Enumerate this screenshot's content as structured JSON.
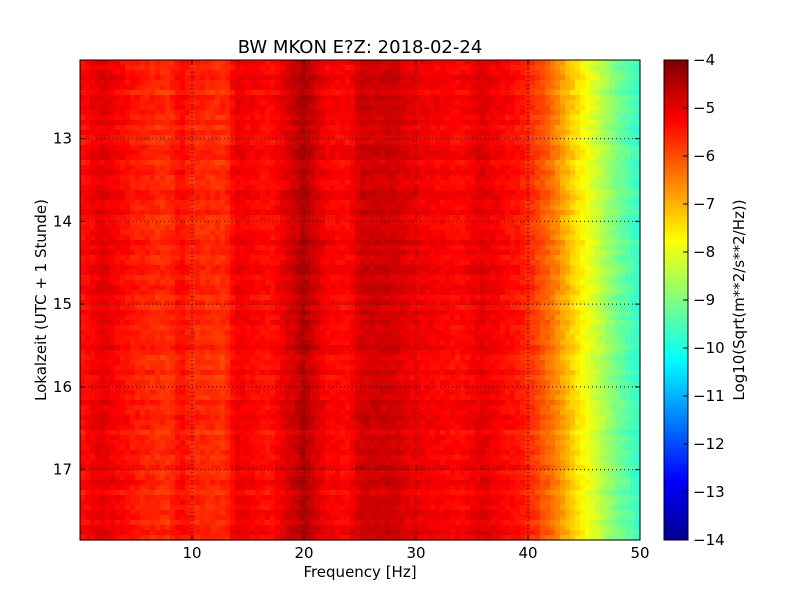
{
  "chart_data": {
    "type": "heatmap",
    "title": "BW MKON E?Z: 2018-02-24",
    "xlabel": "Frequency [Hz]",
    "ylabel": "Lokalzeit (UTC + 1 Stunde)",
    "colorbar_label": "Log10(Sqrt(m**2/s**2/Hz))",
    "colormap": "jet",
    "xlim": [
      0,
      50
    ],
    "ylim": [
      12.05,
      17.85
    ],
    "y_inverted": true,
    "clim": [
      -14,
      -4
    ],
    "grid": true,
    "x_ticks": [
      10,
      20,
      30,
      40,
      50
    ],
    "x_tick_labels": [
      "10",
      "20",
      "30",
      "40",
      "50"
    ],
    "y_ticks": [
      13,
      14,
      15,
      16,
      17
    ],
    "y_tick_labels": [
      "13",
      "14",
      "15",
      "16",
      "17"
    ],
    "colorbar_ticks": [
      -4,
      -5,
      -6,
      -7,
      -8,
      -9,
      -10,
      -11,
      -12,
      -13,
      -14
    ],
    "colorbar_tick_labels": [
      "−4",
      "−5",
      "−6",
      "−7",
      "−8",
      "−9",
      "−10",
      "−11",
      "−12",
      "−13",
      "−14"
    ],
    "spectrum_profile": {
      "frequency_hz": [
        0,
        2,
        5,
        8,
        9,
        10,
        13,
        14,
        17,
        20,
        22,
        24,
        25,
        28,
        30,
        34,
        36,
        38,
        39,
        40,
        42,
        44,
        46,
        48,
        50
      ],
      "level": [
        -5.4,
        -5.0,
        -5.5,
        -5.7,
        -5.3,
        -5.6,
        -5.7,
        -5.1,
        -5.4,
        -4.5,
        -5.2,
        -5.3,
        -4.8,
        -4.8,
        -5.1,
        -5.3,
        -5.0,
        -5.3,
        -5.4,
        -5.6,
        -6.3,
        -7.3,
        -8.2,
        -9.1,
        -9.8
      ]
    }
  }
}
